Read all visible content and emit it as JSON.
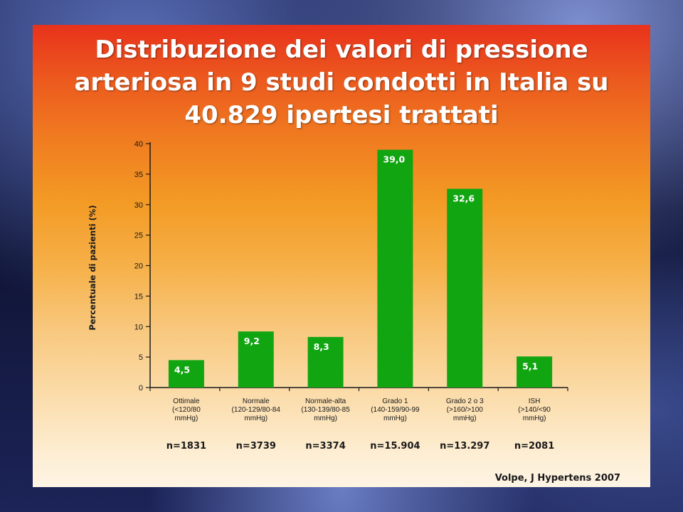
{
  "title_lines": [
    "Distribuzione dei valori di pressione",
    "arteriosa in 9 studi condotti in Italia su",
    "40.829 ipertesi trattati"
  ],
  "source": "Volpe, J Hypertens 2007",
  "colors": {
    "bar": "#12a512",
    "bar_label": "#ffffff",
    "axis": "#1a1a1a"
  },
  "chart_data": {
    "type": "bar",
    "title": "Distribuzione dei valori di pressione arteriosa in 9 studi condotti in Italia su 40.829 ipertesi trattati",
    "xlabel": "",
    "ylabel": "Percentuale di pazienti (%)",
    "ylim": [
      0,
      40
    ],
    "yticks": [
      0,
      5,
      10,
      15,
      20,
      25,
      30,
      35,
      40
    ],
    "grid": false,
    "categories": [
      [
        "Ottimale",
        "(<120/80",
        "mmHg)"
      ],
      [
        "Normale",
        "(120-129/80-84",
        "mmHg)"
      ],
      [
        "Normale-alta",
        "(130-139/80-85",
        "mmHg)"
      ],
      [
        "Grado 1",
        "(140-159/90-99",
        "mmHg)"
      ],
      [
        "Grado 2 o 3",
        "(>160/>100",
        "mmHg)"
      ],
      [
        "ISH",
        "(>140/<90",
        "mmHg)"
      ]
    ],
    "values": [
      4.5,
      9.2,
      8.3,
      39.0,
      32.6,
      5.1
    ],
    "value_labels": [
      "4,5",
      "9,2",
      "8,3",
      "39,0",
      "32,6",
      "5,1"
    ],
    "n_labels": [
      "n=1831",
      "n=3739",
      "n=3374",
      "n=15.904",
      "n=13.297",
      "n=2081"
    ]
  }
}
